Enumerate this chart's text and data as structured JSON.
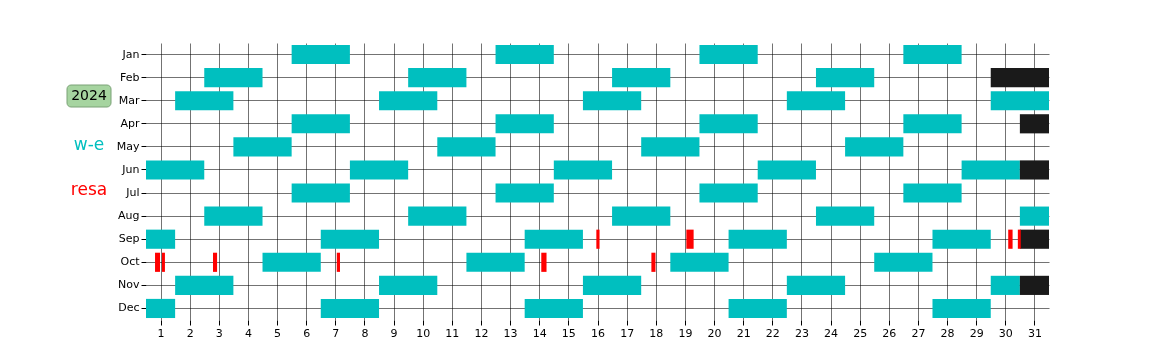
{
  "chart_data": {
    "type": "bar",
    "orientation": "horizontal",
    "categories": [
      "Jan",
      "Feb",
      "Mar",
      "Apr",
      "May",
      "Jun",
      "Jul",
      "Aug",
      "Sep",
      "Oct",
      "Nov",
      "Dec"
    ],
    "xlim": [
      0.5,
      31.5
    ],
    "xticks": [
      1,
      2,
      3,
      4,
      5,
      6,
      7,
      8,
      9,
      10,
      11,
      12,
      13,
      14,
      15,
      16,
      17,
      18,
      19,
      20,
      21,
      22,
      23,
      24,
      25,
      26,
      27,
      28,
      29,
      30,
      31
    ],
    "grid": true,
    "legend": "left",
    "annotations": [
      "2024"
    ],
    "series": [
      {
        "name": "w-e",
        "color": "#00bfbf",
        "base": [
          5.5,
          2.5,
          1.5,
          5.5,
          3.5,
          0.5,
          5.5,
          2.5,
          0.5,
          4.5,
          1.5,
          0.5
        ],
        "values": [
          2,
          2,
          2,
          2,
          2,
          2,
          2,
          2,
          1,
          2,
          2,
          1
        ]
      },
      {
        "color": "#00bfbf",
        "base": [
          12.5,
          9.5,
          8.5,
          12.5,
          10.5,
          7.5,
          12.5,
          9.5,
          6.5,
          11.5,
          8.5,
          6.5
        ],
        "values": [
          2,
          2,
          2,
          2,
          2,
          2,
          2,
          2,
          2,
          2,
          2,
          2
        ]
      },
      {
        "color": "#00bfbf",
        "base": [
          19.5,
          16.5,
          15.5,
          19.5,
          17.5,
          14.5,
          19.5,
          16.5,
          13.5,
          18.5,
          15.5,
          13.5
        ],
        "values": [
          2,
          2,
          2,
          2,
          2,
          2,
          2,
          2,
          2,
          2,
          2,
          2
        ]
      },
      {
        "color": "#00bfbf",
        "base": [
          26.5,
          23.5,
          22.5,
          26.5,
          24.5,
          21.5,
          26.5,
          23.5,
          20.5,
          25.5,
          22.5,
          20.5
        ],
        "values": [
          2,
          2,
          2,
          2,
          2,
          2,
          2,
          2,
          2,
          2,
          2,
          2
        ]
      },
      {
        "color": "#00bfbf",
        "base": [
          null,
          null,
          29.5,
          null,
          null,
          28.5,
          null,
          30.5,
          27.5,
          null,
          29.5,
          27.5
        ],
        "values": [
          null,
          null,
          2,
          null,
          null,
          2,
          null,
          1,
          2,
          null,
          1,
          2
        ]
      },
      {
        "color": "#1a1a1a",
        "base": [
          null,
          29.5,
          null,
          30.5,
          null,
          30.5,
          null,
          null,
          30.5,
          null,
          30.5,
          null
        ],
        "values": [
          null,
          2,
          null,
          1,
          null,
          1,
          null,
          null,
          1,
          null,
          1,
          null
        ]
      },
      {
        "name": "resa",
        "color": "#ff0000",
        "base": [
          null,
          null,
          null,
          null,
          null,
          null,
          null,
          null,
          15.96,
          0.81,
          null,
          null
        ],
        "values": [
          null,
          null,
          null,
          null,
          null,
          null,
          null,
          null,
          0.11,
          0.17,
          null,
          null
        ]
      },
      {
        "color": "#ff0000",
        "base": [
          null,
          null,
          null,
          null,
          null,
          null,
          null,
          null,
          19.05,
          1.05,
          null,
          null
        ],
        "values": [
          null,
          null,
          null,
          null,
          null,
          null,
          null,
          null,
          0.25,
          0.1,
          null,
          null
        ]
      },
      {
        "color": "#ff0000",
        "base": [
          null,
          null,
          null,
          null,
          null,
          null,
          null,
          null,
          30.1,
          2.8,
          null,
          null
        ],
        "values": [
          null,
          null,
          null,
          null,
          null,
          null,
          null,
          null,
          0.15,
          0.14,
          null,
          null
        ]
      },
      {
        "color": "#ff0000",
        "base": [
          null,
          null,
          null,
          null,
          null,
          null,
          null,
          null,
          30.43,
          7.05,
          null,
          null
        ],
        "values": [
          null,
          null,
          null,
          null,
          null,
          null,
          null,
          null,
          0.1,
          0.11,
          null,
          null
        ]
      },
      {
        "color": "#ff0000",
        "base": [
          null,
          null,
          null,
          null,
          null,
          null,
          null,
          null,
          null,
          14.07,
          null,
          null
        ],
        "values": [
          null,
          null,
          null,
          null,
          null,
          null,
          null,
          null,
          null,
          0.18,
          null,
          null
        ]
      },
      {
        "color": "#ff0000",
        "base": [
          null,
          null,
          null,
          null,
          null,
          null,
          null,
          null,
          null,
          17.85,
          null,
          null
        ],
        "values": [
          null,
          null,
          null,
          null,
          null,
          null,
          null,
          null,
          null,
          0.14,
          null,
          null
        ]
      }
    ]
  }
}
